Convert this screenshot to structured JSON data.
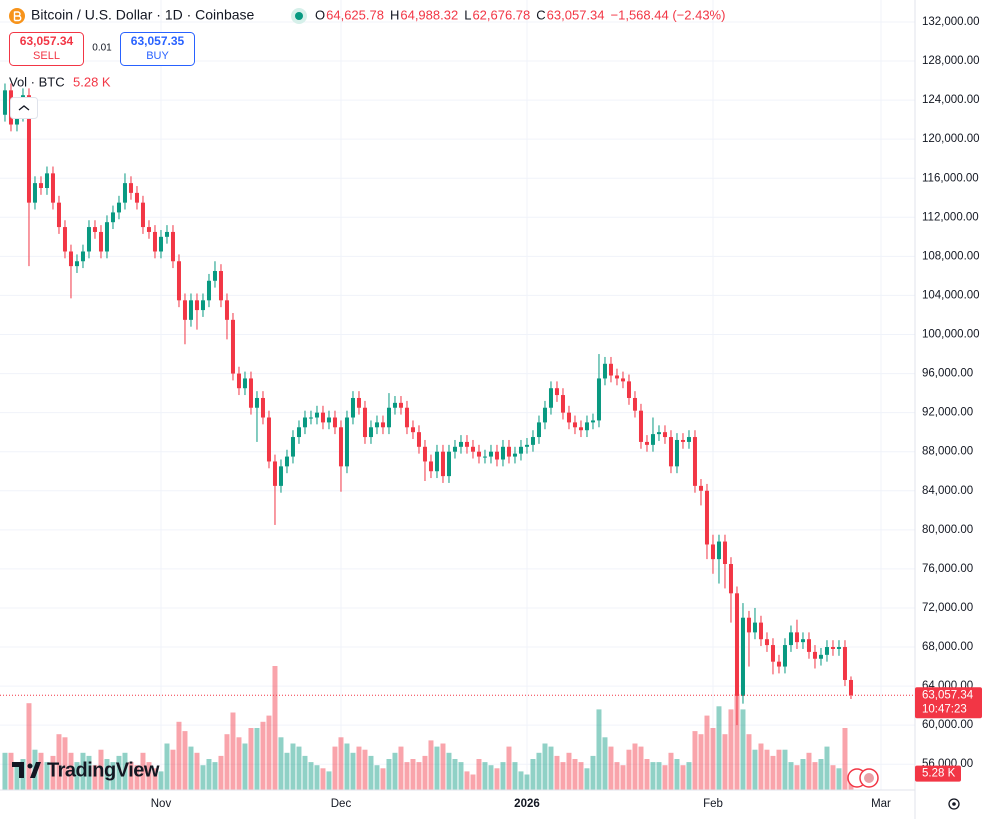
{
  "trade": {
    "sell_price": "63,057.34",
    "sell": "SELL",
    "spread": "0.01",
    "buy_price": "63,057.35",
    "buy": "BUY"
  },
  "brand": "TradingView",
  "chart_data": {
    "type": "candlestick",
    "title": "Bitcoin / U.S. Dollar · 1D · Coinbase",
    "legend": [
      {
        "key": "O",
        "value": "64,625.78"
      },
      {
        "key": "H",
        "value": "64,988.32"
      },
      {
        "key": "L",
        "value": "62,676.78"
      },
      {
        "key": "C",
        "value": "63,057.34"
      }
    ],
    "change": "−1,568.44 (−2.43%)",
    "volume_title": "Vol · BTC",
    "volume_value_label": "5.28 K",
    "last_price_label": "63,057.34",
    "countdown": "10:47:23",
    "up_color": "#089981",
    "down_color": "#f23645",
    "grid": true,
    "open": [
      122500,
      125000,
      121500,
      122500,
      124500,
      113500,
      115500,
      115000,
      116500,
      113500,
      111000,
      108500,
      107000,
      107500,
      108500,
      111000,
      110500,
      108500,
      111500,
      112500,
      113500,
      115500,
      114500,
      113500,
      111000,
      110500,
      108500,
      110000,
      110500,
      107500,
      103500,
      101500,
      103500,
      102500,
      103500,
      105500,
      106500,
      103500,
      101500,
      96000,
      94500,
      95500,
      92500,
      93500,
      91500,
      87000,
      84500,
      86500,
      87500,
      89500,
      90500,
      91500,
      91500,
      92000,
      91000,
      91500,
      90500,
      86500,
      91500,
      93500,
      92500,
      89500,
      90500,
      91000,
      90500,
      92500,
      93000,
      92500,
      90500,
      90000,
      88500,
      87000,
      86000,
      88000,
      85500,
      88000,
      88500,
      89000,
      88500,
      88000,
      87500,
      87500,
      88000,
      87200,
      88500,
      87500,
      87800,
      88500,
      88700,
      89500,
      91000,
      92500,
      94500,
      93800,
      92000,
      91000,
      90500,
      90200,
      91000,
      91200,
      95500,
      97000,
      95800,
      95500,
      95200,
      93500,
      92200,
      89000,
      88700,
      89800,
      90000,
      89500,
      86500,
      89200,
      89000,
      89500,
      84500,
      84000,
      78500,
      77000,
      78800,
      76500,
      73500,
      63000,
      71000,
      69500,
      70500,
      68800,
      68200,
      66500,
      66000,
      68200,
      69500,
      68500,
      68800,
      67500,
      66800,
      67200,
      68000,
      67800,
      68000,
      64625.78
    ],
    "high": [
      125700,
      125700,
      123200,
      125200,
      125200,
      116200,
      116200,
      117200,
      117200,
      114200,
      111700,
      109200,
      108200,
      109200,
      111700,
      111700,
      111200,
      112200,
      113200,
      114200,
      116500,
      116200,
      115200,
      114200,
      111700,
      111200,
      110700,
      111200,
      111200,
      108200,
      104200,
      104200,
      104200,
      104200,
      106200,
      107500,
      107200,
      104200,
      102200,
      96700,
      96200,
      96200,
      94200,
      94200,
      92200,
      87700,
      87200,
      88200,
      90200,
      91200,
      92200,
      92200,
      92700,
      92700,
      92200,
      92200,
      91200,
      92200,
      94200,
      94200,
      93200,
      91200,
      91700,
      91700,
      94000,
      93700,
      93700,
      93200,
      91200,
      90700,
      89200,
      87700,
      88700,
      88700,
      88700,
      89200,
      89700,
      89700,
      89200,
      88700,
      88200,
      88700,
      88700,
      89200,
      89200,
      88500,
      89200,
      89400,
      90200,
      91700,
      93200,
      95200,
      95200,
      94500,
      92700,
      91700,
      91200,
      91700,
      91900,
      98000,
      97700,
      97700,
      96500,
      96200,
      95900,
      94200,
      92900,
      89700,
      91500,
      90700,
      90700,
      90200,
      89900,
      89900,
      90200,
      90200,
      85200,
      84700,
      79500,
      79500,
      79500,
      77200,
      74200,
      72500,
      71700,
      72000,
      71200,
      69500,
      68900,
      67200,
      68900,
      70200,
      70800,
      69500,
      69500,
      68200,
      67900,
      68700,
      68700,
      68700,
      68700,
      64988.32
    ],
    "low": [
      121800,
      120800,
      120800,
      121800,
      107000,
      112800,
      114300,
      114300,
      112800,
      110300,
      107800,
      103700,
      106300,
      106800,
      107800,
      109800,
      107800,
      107800,
      110800,
      111800,
      112800,
      113800,
      112800,
      110300,
      109800,
      107800,
      107800,
      109300,
      106800,
      102800,
      99000,
      100800,
      100500,
      101800,
      102800,
      104800,
      102800,
      99500,
      95300,
      93800,
      93800,
      91800,
      89000,
      90800,
      86300,
      80500,
      83800,
      85800,
      86800,
      88800,
      89800,
      90800,
      90800,
      90300,
      90300,
      89800,
      83900,
      85800,
      90800,
      91800,
      88800,
      88800,
      89800,
      89800,
      89800,
      91800,
      91800,
      89800,
      89300,
      87800,
      85000,
      85300,
      85300,
      84800,
      84800,
      87300,
      87800,
      87800,
      87300,
      86800,
      86800,
      86800,
      86500,
      86500,
      86800,
      86800,
      87100,
      87800,
      88000,
      88800,
      90300,
      91800,
      93100,
      91300,
      90300,
      89800,
      89500,
      89500,
      90300,
      90500,
      94800,
      95100,
      94800,
      94500,
      92800,
      91500,
      88300,
      88000,
      88000,
      89100,
      88800,
      85800,
      85800,
      88300,
      88300,
      83800,
      82500,
      77000,
      75500,
      74500,
      74000,
      70500,
      60000,
      62200,
      66000,
      68800,
      68100,
      67500,
      65200,
      65300,
      65300,
      67500,
      67800,
      67800,
      66800,
      65800,
      66100,
      66500,
      67100,
      67100,
      64000,
      62676.78
    ],
    "close": [
      125000,
      121500,
      122500,
      124500,
      113500,
      115500,
      115000,
      116500,
      113500,
      111000,
      108500,
      107000,
      107500,
      108500,
      111000,
      110500,
      108500,
      111500,
      112500,
      113500,
      115500,
      114500,
      113500,
      111000,
      110500,
      108500,
      110000,
      110500,
      107500,
      103500,
      101500,
      103500,
      102500,
      103500,
      105500,
      106500,
      103500,
      101500,
      96000,
      94500,
      95500,
      92500,
      93500,
      91500,
      87000,
      84500,
      86500,
      87500,
      89500,
      90500,
      91500,
      91500,
      92000,
      91000,
      91500,
      90500,
      86500,
      91500,
      93500,
      92500,
      89500,
      90500,
      91000,
      90500,
      92500,
      93000,
      92500,
      90500,
      90000,
      88500,
      87000,
      86000,
      88000,
      85500,
      88000,
      88500,
      89000,
      88500,
      88000,
      87500,
      87500,
      88000,
      87200,
      88500,
      87500,
      87800,
      88500,
      88700,
      89500,
      91000,
      92500,
      94500,
      93800,
      92000,
      91000,
      90500,
      90200,
      91000,
      91200,
      95500,
      97000,
      95800,
      95500,
      95200,
      93500,
      92200,
      89000,
      88700,
      89800,
      90000,
      89500,
      86500,
      89200,
      89000,
      89500,
      84500,
      84000,
      78500,
      77000,
      78800,
      76500,
      73500,
      63000,
      71000,
      69500,
      70500,
      68800,
      68200,
      66500,
      66000,
      68200,
      69500,
      68500,
      68800,
      67500,
      66800,
      67200,
      68000,
      67800,
      68000,
      64625.78,
      63057.34
    ],
    "volume": [
      12000,
      12000,
      8000,
      10000,
      28000,
      13000,
      12000,
      9000,
      11000,
      18000,
      17000,
      12000,
      9000,
      12000,
      11000,
      8000,
      13000,
      10000,
      9000,
      11000,
      12000,
      9000,
      8000,
      12000,
      9000,
      7000,
      6000,
      15000,
      13000,
      22000,
      19000,
      14000,
      12000,
      8000,
      10000,
      9000,
      11000,
      18000,
      25000,
      17000,
      15000,
      20000,
      20000,
      22000,
      24000,
      40000,
      17000,
      12000,
      15000,
      14000,
      11000,
      9000,
      8000,
      7000,
      6000,
      14000,
      17000,
      15000,
      12000,
      14000,
      13000,
      11000,
      8000,
      7000,
      10000,
      12000,
      14000,
      9000,
      10000,
      9000,
      11000,
      16000,
      14000,
      15000,
      12000,
      10000,
      9000,
      6000,
      5000,
      10000,
      9000,
      8000,
      7000,
      9000,
      14000,
      9000,
      6000,
      5000,
      10000,
      12000,
      15000,
      14000,
      11000,
      9000,
      12000,
      10000,
      9000,
      7000,
      11000,
      26000,
      17000,
      14000,
      9000,
      8000,
      13000,
      15000,
      14000,
      10000,
      9000,
      9000,
      8000,
      12000,
      10000,
      8000,
      9000,
      19000,
      18000,
      24000,
      20000,
      27000,
      18000,
      26000,
      31000,
      26000,
      18000,
      13000,
      15000,
      13000,
      11000,
      13000,
      13000,
      9000,
      8000,
      10000,
      12000,
      9000,
      10000,
      14000,
      8000,
      7000,
      20000,
      5280
    ],
    "volume_lim": [
      0,
      40000
    ],
    "xlim": [
      -0.83,
      151.67
    ],
    "xticks": [
      {
        "value": 26,
        "label": "Nov"
      },
      {
        "value": 56,
        "label": "Dec"
      },
      {
        "value": 87,
        "label": "2026"
      },
      {
        "value": 118,
        "label": "Feb"
      },
      {
        "value": 146,
        "label": "Mar"
      }
    ],
    "ylim": [
      53360,
      134250
    ],
    "yticks": [
      {
        "value": 132000,
        "label": "132,000.00"
      },
      {
        "value": 128000,
        "label": "128,000.00"
      },
      {
        "value": 124000,
        "label": "124,000.00"
      },
      {
        "value": 120000,
        "label": "120,000.00"
      },
      {
        "value": 116000,
        "label": "116,000.00"
      },
      {
        "value": 112000,
        "label": "112,000.00"
      },
      {
        "value": 108000,
        "label": "108,000.00"
      },
      {
        "value": 104000,
        "label": "104,000.00"
      },
      {
        "value": 100000,
        "label": "100,000.00"
      },
      {
        "value": 96000,
        "label": "96,000.00"
      },
      {
        "value": 92000,
        "label": "92,000.00"
      },
      {
        "value": 88000,
        "label": "88,000.00"
      },
      {
        "value": 84000,
        "label": "84,000.00"
      },
      {
        "value": 80000,
        "label": "80,000.00"
      },
      {
        "value": 76000,
        "label": "76,000.00"
      },
      {
        "value": 72000,
        "label": "72,000.00"
      },
      {
        "value": 68000,
        "label": "68,000.00"
      },
      {
        "value": 64000,
        "label": "64,000.00"
      },
      {
        "value": 60000,
        "label": "60,000.00"
      },
      {
        "value": 56000,
        "label": "56,000.00"
      }
    ]
  }
}
